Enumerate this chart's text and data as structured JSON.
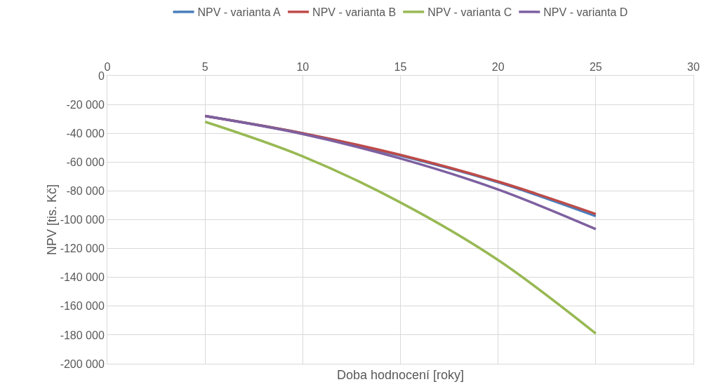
{
  "chart_data": {
    "type": "line",
    "xlabel": "Doba hodnocení [roky]",
    "ylabel": "NPV [tis. Kč]",
    "x": [
      5,
      10,
      15,
      20,
      25
    ],
    "series": [
      {
        "name": "NPV - varianta A",
        "color": "#4a7ebb",
        "values": [
          -28000,
          -40000,
          -55500,
          -74000,
          -97500
        ]
      },
      {
        "name": "NPV - varianta B",
        "color": "#be4b48",
        "values": [
          -28000,
          -40000,
          -55000,
          -73500,
          -96000
        ]
      },
      {
        "name": "NPV - varianta C",
        "color": "#98b954",
        "values": [
          -32000,
          -56000,
          -88000,
          -128000,
          -179000
        ]
      },
      {
        "name": "NPV - varianta D",
        "color": "#7d60a0",
        "values": [
          -28000,
          -40500,
          -57500,
          -79000,
          -106500
        ]
      }
    ],
    "xlim": [
      0,
      30
    ],
    "xticks": [
      0,
      5,
      10,
      15,
      20,
      25,
      30
    ],
    "ylim": [
      -200000,
      0
    ],
    "yticks": [
      {
        "value": 0,
        "label": "0"
      },
      {
        "value": -20000,
        "label": "-20 000"
      },
      {
        "value": -40000,
        "label": "-40 000"
      },
      {
        "value": -60000,
        "label": "-60 000"
      },
      {
        "value": -80000,
        "label": "-80 000"
      },
      {
        "value": -100000,
        "label": "-100 000"
      },
      {
        "value": -120000,
        "label": "-120 000"
      },
      {
        "value": -140000,
        "label": "-140 000"
      },
      {
        "value": -160000,
        "label": "-160 000"
      },
      {
        "value": -180000,
        "label": "-180 000"
      },
      {
        "value": -200000,
        "label": "-200 000"
      }
    ],
    "grid": true,
    "legend": "top",
    "marker": "none",
    "line_style": "solid"
  }
}
